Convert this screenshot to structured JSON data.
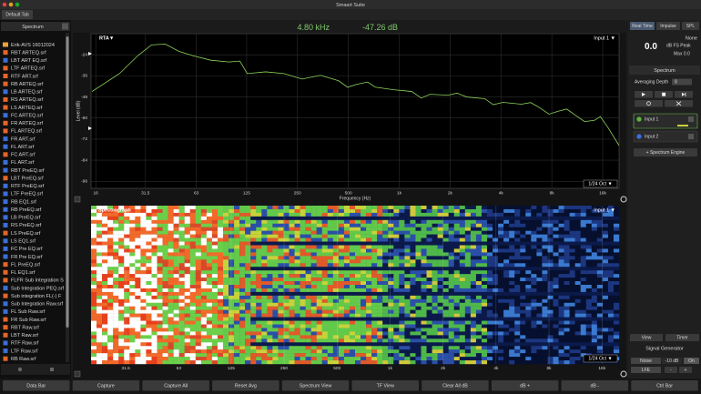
{
  "window_title": "Smaart Suite",
  "tab": "Default Tab",
  "sidebar": {
    "title": "Spectrum",
    "items": [
      "Erik-AVS 16012024",
      "RBT ARTEQ.srf",
      "LBT ART EQ.srf",
      "LTF ARTEQ.srf",
      "RTF ART.srf",
      "RB ARTEQ.srf",
      "LB ARTEQ.srf",
      "RS ARTEQ.srf",
      "LS ARTEQ.srf",
      "FC ARTEQ.srf",
      "FR ARTEQ.srf",
      "FL ARTEQ.srf",
      "FR ART.srf",
      "FL ART.srf",
      "FC ART.srf",
      "FL ART.srf",
      "RBT PreEQ.srf",
      "LBT PreEQ.srf",
      "RTF PreEQ.srf",
      "LTF PreEQ.srf",
      "RB EQ1.srf",
      "RB PreEQ.srf",
      "LB PreEQ.srf",
      "RS PreEQ.srf",
      "LS PreEQ.srf",
      "LS EQ1.srf",
      "FC Pre EQ.srf",
      "FR Pre EQ.srf",
      "FL PreEQ.srf",
      "FL EQ1.srf",
      "FLFR Sub Integration S",
      "Sub Integration PEQ.srf",
      "Sub integration FL(-) F",
      "Sub Integration Raw.srf",
      "FL Sub Raw.srf",
      "FR Sub Raw.srf",
      "RBT Raw.srf",
      "LBT Raw.srf",
      "RTF Raw.srf",
      "LTF Raw.srf",
      "RB Raw.srf"
    ]
  },
  "readout": {
    "frequency": "4.80 kHz",
    "level": "-47.26 dB"
  },
  "rta": {
    "label": "RTA▼",
    "input": "Input 1 ▼",
    "resolution": "1/24 Oct ▼",
    "y_label": "Level (dB)",
    "x_label": "Frequency (Hz)",
    "log_x": true,
    "grid": true,
    "color": "#8fd45a",
    "xlim": [
      15,
      20000
    ],
    "ylim": [
      -100,
      -12
    ],
    "xticks": [
      16,
      31.5,
      63,
      125,
      250,
      500,
      {
        "value": 1000,
        "label": "1k"
      },
      {
        "value": 2000,
        "label": "2k"
      },
      {
        "value": 4000,
        "label": "4k"
      },
      {
        "value": 8000,
        "label": "8k"
      },
      {
        "value": 16000,
        "label": "16k"
      }
    ],
    "yticks": [
      -24,
      -36,
      -48,
      -60,
      -72,
      -84,
      -96
    ],
    "curve": {
      "x": [
        15.2,
        22.1,
        28.4,
        34.2,
        41.2,
        49.6,
        59.8,
        76.8,
        98.4,
        114,
        126,
        162,
        208,
        266,
        342,
        438,
        495,
        562,
        650,
        721,
        925,
        1186,
        1350,
        1521,
        1951,
        2200,
        2502,
        3210,
        3600,
        4115,
        5280,
        6000,
        6770,
        7700,
        8690,
        9800,
        11140,
        12500,
        14290,
        15500,
        17200,
        20000
      ],
      "y": [
        -44.9,
        -34.7,
        -24.5,
        -18.4,
        -17.9,
        -22,
        -24.5,
        -27.1,
        -28.1,
        -27.6,
        -34.7,
        -33.7,
        -34.7,
        -37.8,
        -35.7,
        -38.8,
        -42.5,
        -40.8,
        -39.5,
        -42.4,
        -43.9,
        -44.9,
        -48.6,
        -46.5,
        -47,
        -45.8,
        -48,
        -49,
        -52.4,
        -51.1,
        -52.1,
        -51.2,
        -54.1,
        -57.8,
        -56.2,
        -54.9,
        -58.7,
        -62,
        -61.3,
        -59.2,
        -65.4,
        -75.6
      ]
    }
  },
  "spectrograph": {
    "label": "Spectrograph",
    "input": "Input 1 ▼",
    "resolution": "1/24 Oct ▼",
    "log_x": true,
    "xlim": [
      20,
      20000
    ],
    "xticks": [
      31.5,
      63,
      125,
      250,
      500,
      {
        "value": 1000,
        "label": "1k"
      },
      {
        "value": 2000,
        "label": "2k"
      },
      {
        "value": 4000,
        "label": "4k"
      },
      {
        "value": 8000,
        "label": "8k"
      },
      {
        "value": 16000,
        "label": "16k"
      }
    ]
  },
  "modes": [
    "Real Time",
    "Impulse",
    "SPL"
  ],
  "meter": {
    "source": "None",
    "value": "0.0",
    "unit": "dB FS Peak",
    "max": "Max 0.0"
  },
  "spectrum_panel": {
    "title": "Spectrum",
    "averaging_label": "Averaging Depth",
    "averaging_value": "8",
    "inputs": [
      "Input 1",
      "Input 2"
    ],
    "add_engine": "+ Spectrum Engine"
  },
  "view_buttons": [
    "View",
    "Timer"
  ],
  "signal_generator": {
    "title": "Signal Generator",
    "signal": "Noise",
    "level": "-10 dB",
    "state": "On",
    "channel": "LFE",
    "minus": "-",
    "plus": "+"
  },
  "toolbar": [
    "Data Bar",
    "Capture",
    "Capture All",
    "Reset Avg",
    "Spectrum View",
    "TF View",
    "Clear All dB",
    "dB +",
    "dB -",
    "Ctrl Bar"
  ]
}
